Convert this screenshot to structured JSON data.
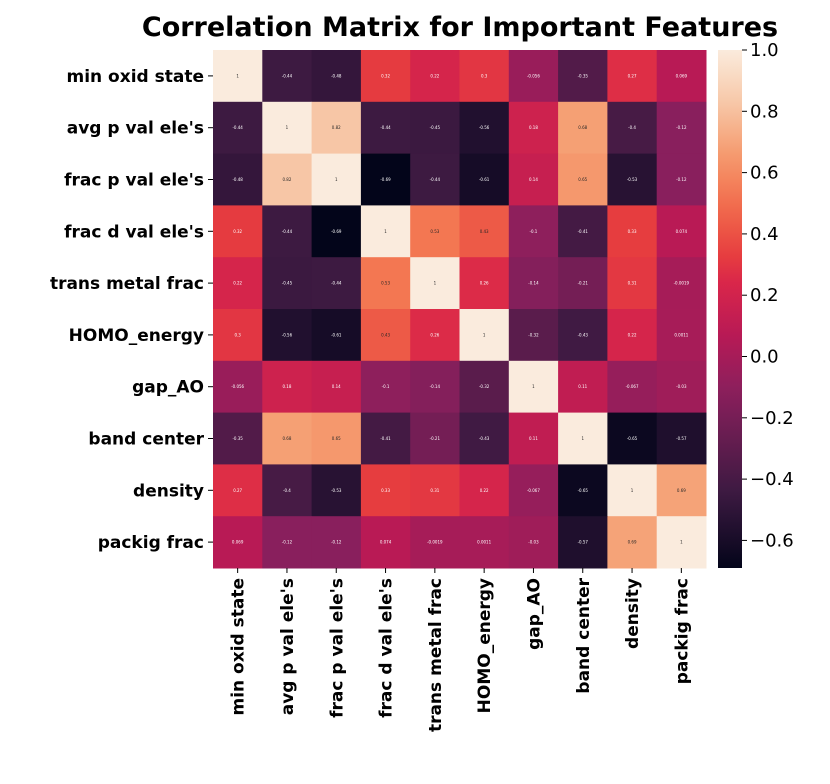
{
  "chart_data": {
    "type": "heatmap",
    "title": "Correlation Matrix for Important Features",
    "labels": [
      "min oxid state",
      "avg p val ele's",
      "frac p val ele's",
      "frac d val ele's",
      "trans metal frac",
      "HOMO_energy",
      "gap_AO",
      "band center",
      "density",
      "packig frac"
    ],
    "values": [
      [
        1,
        -0.44,
        -0.48,
        0.32,
        0.22,
        0.3,
        -0.056,
        -0.35,
        0.27,
        0.069
      ],
      [
        -0.44,
        1,
        0.82,
        -0.44,
        -0.45,
        -0.56,
        0.18,
        0.68,
        -0.4,
        -0.12
      ],
      [
        -0.48,
        0.82,
        1,
        -0.69,
        -0.44,
        -0.61,
        0.14,
        0.65,
        -0.53,
        -0.12
      ],
      [
        0.32,
        -0.44,
        -0.69,
        1,
        0.53,
        0.43,
        -0.1,
        -0.41,
        0.33,
        0.074
      ],
      [
        0.22,
        -0.45,
        -0.44,
        0.53,
        1,
        0.26,
        -0.14,
        -0.21,
        0.31,
        -0.0019
      ],
      [
        0.3,
        -0.56,
        -0.61,
        0.43,
        0.26,
        1,
        -0.32,
        -0.43,
        0.22,
        0.0011
      ],
      [
        -0.056,
        0.18,
        0.14,
        -0.1,
        -0.14,
        -0.32,
        1,
        0.11,
        -0.067,
        -0.03
      ],
      [
        -0.35,
        0.68,
        0.65,
        -0.41,
        -0.21,
        -0.43,
        0.11,
        1,
        -0.65,
        -0.57
      ],
      [
        0.27,
        -0.4,
        -0.53,
        0.33,
        0.31,
        0.22,
        -0.067,
        -0.65,
        1,
        0.69
      ],
      [
        0.069,
        -0.12,
        -0.12,
        0.074,
        -0.0019,
        0.0011,
        -0.03,
        -0.57,
        0.69,
        1
      ]
    ],
    "colormap": "rocket",
    "vmin": -0.69,
    "vmax": 1,
    "colorbar_ticks": [
      "1.0",
      "0.8",
      "0.6",
      "0.4",
      "0.2",
      "0.0",
      "−0.2",
      "−0.4",
      "−0.6"
    ],
    "colorbar_tick_values": [
      1.0,
      0.8,
      0.6,
      0.4,
      0.2,
      0.0,
      -0.2,
      -0.4,
      -0.6
    ],
    "annotations": true,
    "grid": false
  }
}
